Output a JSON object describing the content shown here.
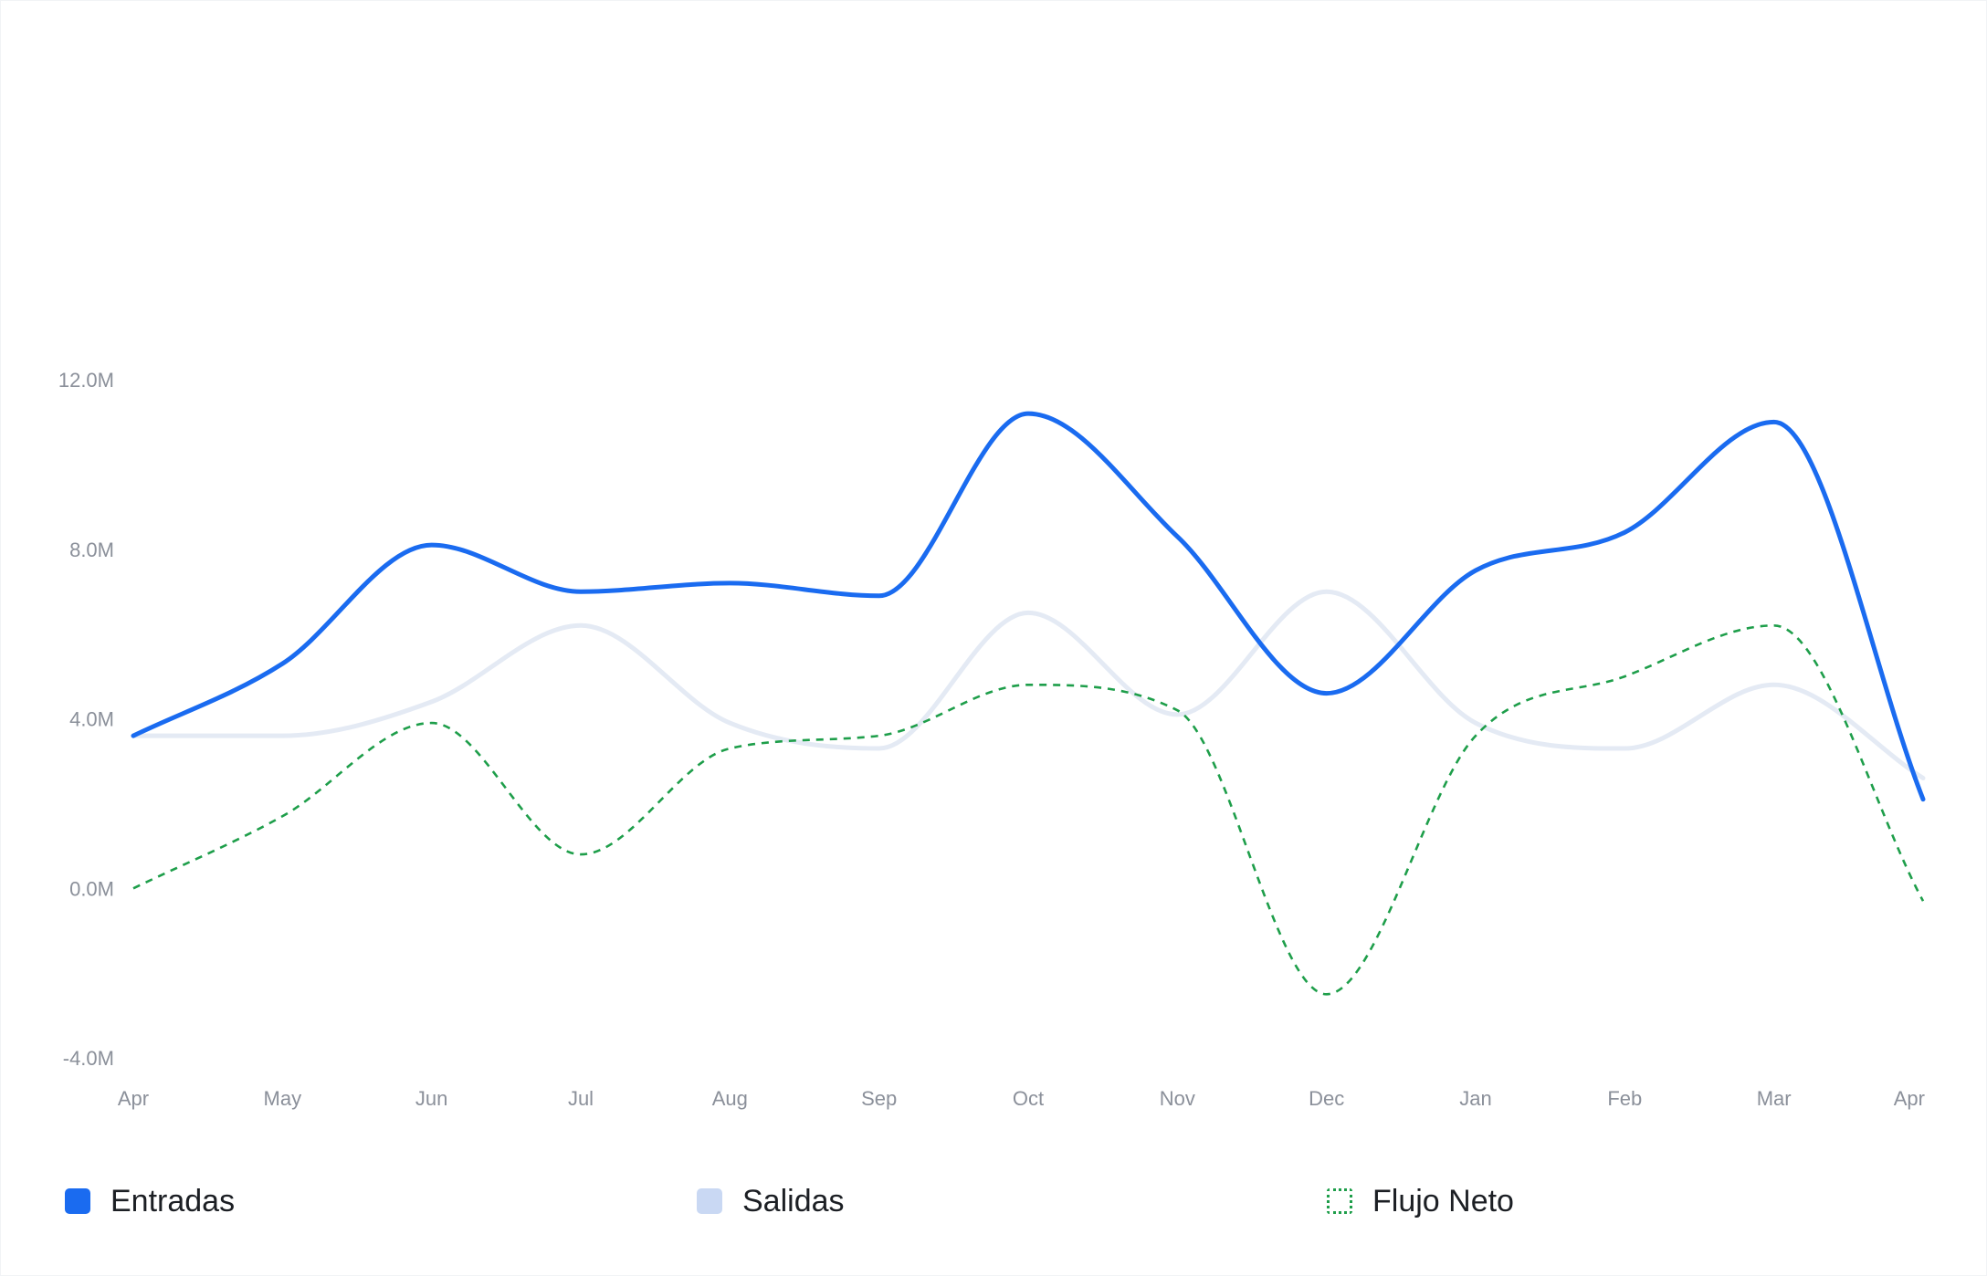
{
  "chart_data": {
    "type": "line",
    "title": "",
    "xlabel": "",
    "ylabel": "",
    "categories": [
      "Apr",
      "May",
      "Jun",
      "Jul",
      "Aug",
      "Sep",
      "Oct",
      "Nov",
      "Dec",
      "Jan",
      "Feb",
      "Mar",
      "Apr"
    ],
    "y_ticks": [
      "12.0M",
      "8.0M",
      "4.0M",
      "0.0M",
      "-4.0M"
    ],
    "ylim": [
      -4,
      12
    ],
    "grid": false,
    "legend_position": "bottom",
    "series": [
      {
        "name": "Entradas",
        "color": "#1a6bf0",
        "style": "solid",
        "values": [
          3.6,
          5.3,
          8.1,
          7.0,
          7.2,
          6.9,
          11.2,
          8.3,
          4.6,
          7.5,
          8.4,
          11.0,
          2.1
        ]
      },
      {
        "name": "Salidas",
        "color": "#e4eaf4",
        "style": "solid",
        "values": [
          3.6,
          3.6,
          4.4,
          6.2,
          3.9,
          3.3,
          6.5,
          4.1,
          7.0,
          3.9,
          3.3,
          4.8,
          2.6
        ]
      },
      {
        "name": "Flujo Neto",
        "color": "#1e9e4a",
        "style": "dashed",
        "values": [
          0.0,
          1.7,
          3.9,
          0.8,
          3.3,
          3.6,
          4.8,
          4.2,
          -2.5,
          3.6,
          5.0,
          6.2,
          -0.3
        ]
      }
    ]
  },
  "legend": {
    "items": [
      {
        "label": "Entradas",
        "swatch_color": "#1a6bf0",
        "swatch_style": "filled"
      },
      {
        "label": "Salidas",
        "swatch_color": "#c9d8f3",
        "swatch_style": "filled"
      },
      {
        "label": "Flujo Neto",
        "swatch_color": "#1e9e4a",
        "swatch_style": "dotted-outline"
      }
    ]
  }
}
